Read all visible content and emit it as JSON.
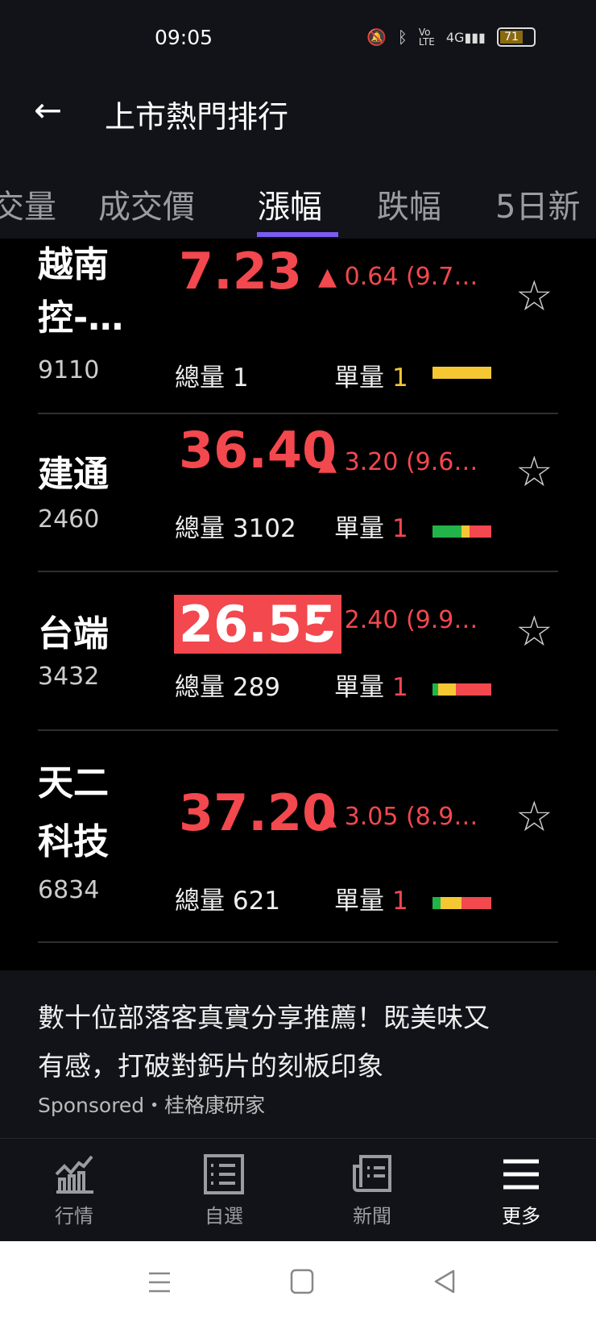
{
  "status_bar": {
    "time": "09:05",
    "battery": "71"
  },
  "header": {
    "back": "←",
    "title": "上市熱門排行"
  },
  "tabs": [
    {
      "label": "交量"
    },
    {
      "label": "成交價"
    },
    {
      "label": "漲幅",
      "active": true
    },
    {
      "label": "跌幅"
    },
    {
      "label": "5日新"
    }
  ],
  "rows": [
    {
      "name1": "越南",
      "name2": "控-…",
      "code": "9110",
      "price": "7.23",
      "change": "▲ 0.64 (9.7…",
      "vol_label": "總量",
      "vol": "1",
      "unit_label": "單量",
      "unit": "1",
      "unit_color": "#f5c833",
      "bar": {
        "green": 0,
        "yellow": 100,
        "red": 0
      }
    },
    {
      "name1": "建通",
      "code": "2460",
      "price": "36.40",
      "change": "▲ 3.20 (9.6…",
      "vol_label": "總量",
      "vol": "3102",
      "unit_label": "單量",
      "unit": "1",
      "unit_color": "#f2484e",
      "bar": {
        "green": 49,
        "yellow": 14,
        "red": 37
      }
    },
    {
      "name1": "台端",
      "code": "3432",
      "price": "26.55",
      "highlight": true,
      "change": "▲ 2.40 (9.9…",
      "vol_label": "總量",
      "vol": "289",
      "unit_label": "單量",
      "unit": "1",
      "unit_color": "#f2484e",
      "bar": {
        "green": 9,
        "yellow": 31,
        "red": 60
      }
    },
    {
      "name1": "天二",
      "name2": "科技",
      "code": "6834",
      "price": "37.20",
      "change": "▲ 3.05 (8.9…",
      "vol_label": "總量",
      "vol": "621",
      "unit_label": "單量",
      "unit": "1",
      "unit_color": "#f2484e",
      "bar": {
        "green": 14,
        "yellow": 36,
        "red": 50
      }
    }
  ],
  "ad": {
    "line1": "數十位部落客真實分享推薦！既美味又",
    "line2": "有感，打破對鈣片的刻板印象",
    "sponsor": "Sponsored・桂格康研家"
  },
  "bottom_nav": [
    {
      "label": "行情",
      "icon": "chart-icon"
    },
    {
      "label": "自選",
      "icon": "list-icon"
    },
    {
      "label": "新聞",
      "icon": "newspaper-icon"
    },
    {
      "label": "更多",
      "icon": "menu-icon",
      "active": true
    }
  ],
  "colors": {
    "up": "#f2484e",
    "accent": "#7b5cf0",
    "green": "#22b34a",
    "yellow": "#f5c833"
  }
}
